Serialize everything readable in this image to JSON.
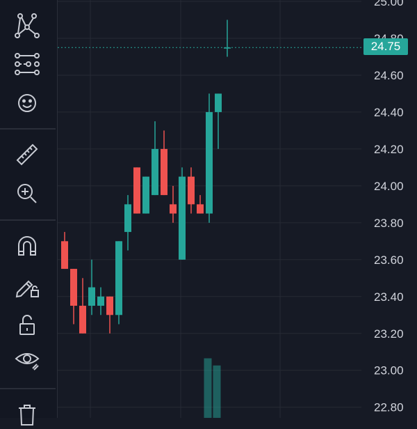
{
  "colors": {
    "background": "#161a25",
    "grid": "#262a35",
    "up": "#26a69a",
    "down": "#ef5350",
    "text": "#d1d4dc",
    "icon": "#c9ccd4"
  },
  "toolbar": {
    "tools": [
      {
        "name": "pattern-tool-icon"
      },
      {
        "name": "forecast-tool-icon"
      },
      {
        "name": "emoji-icon"
      },
      {
        "name": "ruler-icon"
      },
      {
        "name": "zoom-in-icon"
      },
      {
        "name": "magnet-icon"
      },
      {
        "name": "pencil-lock-icon"
      },
      {
        "name": "lock-icon"
      },
      {
        "name": "eye-icon"
      },
      {
        "name": "trash-icon"
      }
    ]
  },
  "chart": {
    "current_price_label": "24.75",
    "current_price": 24.75
  },
  "chart_data": {
    "type": "candlestick",
    "y_axis": {
      "range": [
        22.78,
        25.0
      ],
      "tick_labels": [
        "25.00",
        "24.80",
        "24.60",
        "24.40",
        "24.20",
        "24.00",
        "23.80",
        "23.60",
        "23.40",
        "23.20",
        "23.00",
        "22.80"
      ],
      "tick_values": [
        25.0,
        24.8,
        24.6,
        24.4,
        24.2,
        24.0,
        23.8,
        23.6,
        23.4,
        23.2,
        23.0,
        22.8
      ]
    },
    "candles": [
      {
        "open": 23.7,
        "high": 23.75,
        "low": 23.55,
        "close": 23.55
      },
      {
        "open": 23.55,
        "high": 23.55,
        "low": 23.25,
        "close": 23.35
      },
      {
        "open": 23.35,
        "high": 23.5,
        "low": 23.2,
        "close": 23.2
      },
      {
        "open": 23.35,
        "high": 23.6,
        "low": 23.3,
        "close": 23.45
      },
      {
        "open": 23.35,
        "high": 23.45,
        "low": 23.3,
        "close": 23.4
      },
      {
        "open": 23.4,
        "high": 23.4,
        "low": 23.2,
        "close": 23.3
      },
      {
        "open": 23.3,
        "high": 23.7,
        "low": 23.25,
        "close": 23.7
      },
      {
        "open": 23.75,
        "high": 23.95,
        "low": 23.65,
        "close": 23.9
      },
      {
        "open": 24.1,
        "high": 24.1,
        "low": 23.85,
        "close": 23.85
      },
      {
        "open": 23.85,
        "high": 24.05,
        "low": 23.85,
        "close": 24.05
      },
      {
        "open": 23.95,
        "high": 24.35,
        "low": 23.95,
        "close": 24.2
      },
      {
        "open": 24.2,
        "high": 24.3,
        "low": 23.95,
        "close": 23.95
      },
      {
        "open": 23.9,
        "high": 24.0,
        "low": 23.8,
        "close": 23.85
      },
      {
        "open": 23.6,
        "high": 24.1,
        "low": 23.6,
        "close": 24.05
      },
      {
        "open": 24.05,
        "high": 24.1,
        "low": 23.85,
        "close": 23.9
      },
      {
        "open": 23.9,
        "high": 23.95,
        "low": 23.85,
        "close": 23.85
      },
      {
        "open": 23.85,
        "high": 24.5,
        "low": 23.8,
        "close": 24.4
      },
      {
        "open": 24.4,
        "high": 24.5,
        "low": 24.2,
        "close": 24.5
      },
      {
        "open": 24.75,
        "high": 24.9,
        "low": 24.7,
        "close": 24.75
      }
    ],
    "volume": [
      {
        "value": 0.75
      },
      {
        "value": 0.66
      }
    ]
  }
}
